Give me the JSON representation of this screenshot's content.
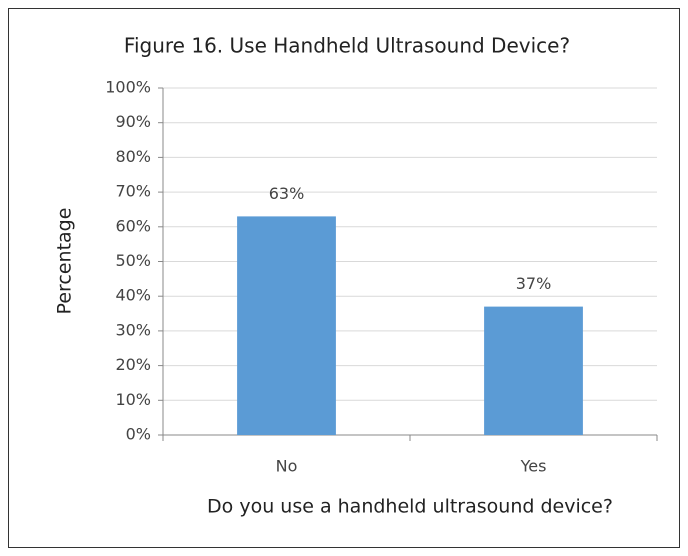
{
  "chart_data": {
    "type": "bar",
    "title": "Figure 16. Use Handheld Ultrasound Device?",
    "x_label": "Do you use a handheld ultrasound device?",
    "y_label": "Percentage",
    "categories": [
      "No",
      "Yes"
    ],
    "values": [
      63,
      37
    ],
    "value_labels": [
      "63%",
      "37%"
    ],
    "color": "#5b9bd5",
    "ylim": [
      0,
      100
    ],
    "yticks": [
      {
        "value": 0,
        "label": "0%"
      },
      {
        "value": 10,
        "label": "10%"
      },
      {
        "value": 20,
        "label": "20%"
      },
      {
        "value": 30,
        "label": "30%"
      },
      {
        "value": 40,
        "label": "40%"
      },
      {
        "value": 50,
        "label": "50%"
      },
      {
        "value": 60,
        "label": "60%"
      },
      {
        "value": 70,
        "label": "70%"
      },
      {
        "value": 80,
        "label": "80%"
      },
      {
        "value": 90,
        "label": "90%"
      },
      {
        "value": 100,
        "label": "100%"
      }
    ],
    "grid": true
  }
}
